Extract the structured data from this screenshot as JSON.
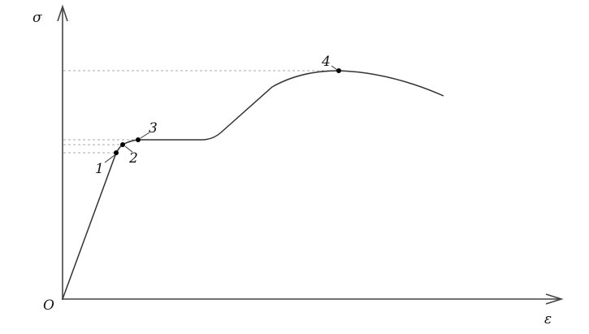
{
  "diagram": {
    "y_axis_label": "σ",
    "x_axis_label": "ε",
    "origin_label": "O",
    "points": [
      {
        "label": "1"
      },
      {
        "label": "2"
      },
      {
        "label": "3"
      },
      {
        "label": "4"
      }
    ],
    "colors": {
      "line": "#333333",
      "guide": "#aaaaaa"
    }
  }
}
